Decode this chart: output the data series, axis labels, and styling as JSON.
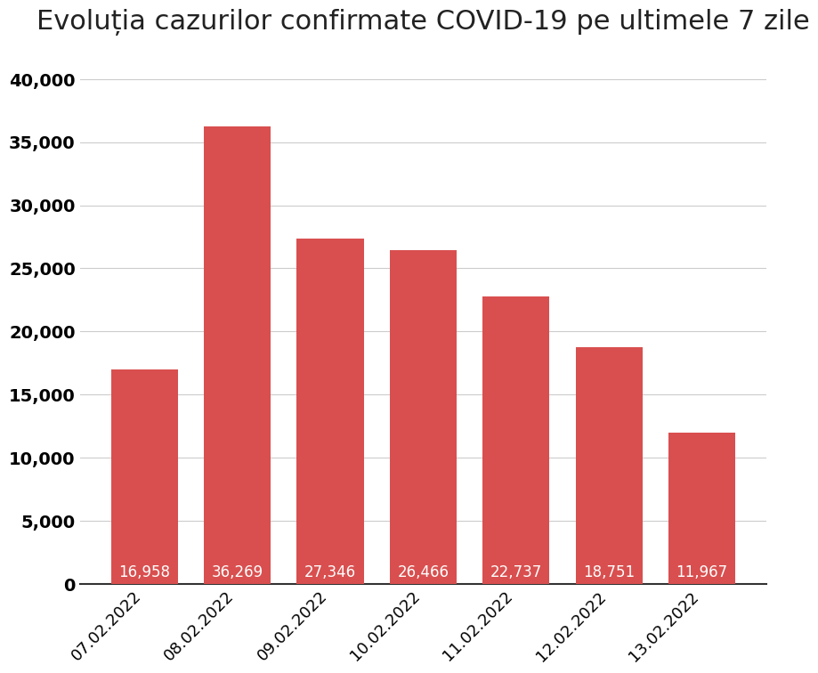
{
  "title": "Evoluția cazurilor confirmate COVID-19 pe ultimele 7 zile",
  "categories": [
    "07.02.2022",
    "08.02.2022",
    "09.02.2022",
    "10.02.2022",
    "11.02.2022",
    "12.02.2022",
    "13.02.2022"
  ],
  "values": [
    16958,
    36269,
    27346,
    26466,
    22737,
    18751,
    11967
  ],
  "bar_color": "#d94f4f",
  "label_color": "#ffffff",
  "title_fontsize": 22,
  "label_fontsize": 12,
  "tick_fontsize": 13,
  "ytick_fontsize": 14,
  "ylim": [
    0,
    42000
  ],
  "yticks": [
    0,
    5000,
    10000,
    15000,
    20000,
    25000,
    30000,
    35000,
    40000
  ],
  "background_color": "#ffffff",
  "grid_color": "#cccccc",
  "bar_width": 0.72
}
